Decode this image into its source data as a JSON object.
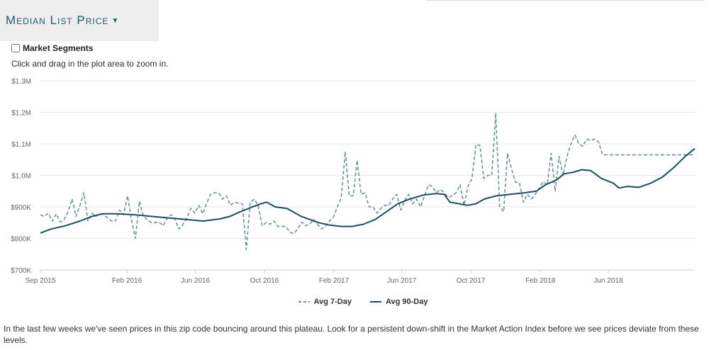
{
  "header": {
    "title": "Median List Price"
  },
  "segments": {
    "label": "Market Segments",
    "checked": false
  },
  "hint": "Click and drag in the plot area to zoom in.",
  "footer": "In the last few weeks we've seen prices in this zip code bouncing around this plateau. Look for a persistent down-shift in the Market Action Index before we see prices deviate from these levels.",
  "colors": {
    "series7": "#6a9497",
    "series90": "#1d4e5c",
    "grid": "#e6e6e6",
    "title": "#1e5a6e"
  },
  "chart_data": {
    "type": "line",
    "title": "",
    "xlabel": "",
    "ylabel": "",
    "ylim": [
      700000,
      1300000
    ],
    "yticks": [
      700000,
      800000,
      900000,
      1000000,
      1100000,
      1200000,
      1300000
    ],
    "ytick_labels": [
      "$700K",
      "$800K",
      "$900K",
      "$1.0M",
      "$1.1M",
      "$1.2M",
      "$1.3M"
    ],
    "xticks": [
      "2015-09-01",
      "2016-02-01",
      "2016-06-01",
      "2016-10-01",
      "2017-02-01",
      "2017-06-01",
      "2017-10-01",
      "2018-02-01",
      "2018-06-01"
    ],
    "xtick_labels": [
      "Sep 2015",
      "Feb 2016",
      "Jun 2016",
      "Oct 2016",
      "Feb 2017",
      "Jun 2017",
      "Oct 2017",
      "Feb 2018",
      "Jun 2018"
    ],
    "xrange": [
      "2015-09-01",
      "2018-11-01"
    ],
    "grid": "horizontal",
    "legend": "bottom-center",
    "series": [
      {
        "name": "Avg 7-Day",
        "style": "dashed",
        "points": [
          [
            "2015-09-01",
            875000
          ],
          [
            "2015-09-08",
            870000
          ],
          [
            "2015-09-15",
            880000
          ],
          [
            "2015-09-22",
            855000
          ],
          [
            "2015-09-29",
            878000
          ],
          [
            "2015-10-06",
            852000
          ],
          [
            "2015-10-13",
            860000
          ],
          [
            "2015-10-20",
            885000
          ],
          [
            "2015-10-27",
            925000
          ],
          [
            "2015-11-03",
            870000
          ],
          [
            "2015-11-10",
            905000
          ],
          [
            "2015-11-17",
            945000
          ],
          [
            "2015-11-24",
            855000
          ],
          [
            "2015-12-01",
            880000
          ],
          [
            "2015-12-08",
            870000
          ],
          [
            "2015-12-15",
            880000
          ],
          [
            "2015-12-22",
            875000
          ],
          [
            "2015-12-29",
            865000
          ],
          [
            "2016-01-05",
            855000
          ],
          [
            "2016-01-12",
            855000
          ],
          [
            "2016-01-19",
            890000
          ],
          [
            "2016-01-26",
            875000
          ],
          [
            "2016-02-02",
            935000
          ],
          [
            "2016-02-09",
            860000
          ],
          [
            "2016-02-16",
            800000
          ],
          [
            "2016-02-23",
            918000
          ],
          [
            "2016-03-01",
            870000
          ],
          [
            "2016-03-08",
            860000
          ],
          [
            "2016-03-15",
            850000
          ],
          [
            "2016-03-22",
            850000
          ],
          [
            "2016-03-29",
            852000
          ],
          [
            "2016-04-05",
            840000
          ],
          [
            "2016-04-12",
            865000
          ],
          [
            "2016-04-19",
            875000
          ],
          [
            "2016-04-26",
            860000
          ],
          [
            "2016-05-03",
            830000
          ],
          [
            "2016-05-10",
            845000
          ],
          [
            "2016-05-17",
            865000
          ],
          [
            "2016-05-24",
            895000
          ],
          [
            "2016-05-31",
            880000
          ],
          [
            "2016-06-07",
            905000
          ],
          [
            "2016-06-14",
            878000
          ],
          [
            "2016-06-21",
            912000
          ],
          [
            "2016-06-28",
            940000
          ],
          [
            "2016-07-05",
            945000
          ],
          [
            "2016-07-12",
            945000
          ],
          [
            "2016-07-19",
            925000
          ],
          [
            "2016-07-26",
            935000
          ],
          [
            "2016-08-02",
            905000
          ],
          [
            "2016-08-09",
            915000
          ],
          [
            "2016-08-16",
            912000
          ],
          [
            "2016-08-23",
            910000
          ],
          [
            "2016-08-30",
            765000
          ],
          [
            "2016-09-06",
            915000
          ],
          [
            "2016-09-13",
            925000
          ],
          [
            "2016-09-20",
            905000
          ],
          [
            "2016-09-27",
            840000
          ],
          [
            "2016-10-04",
            850000
          ],
          [
            "2016-10-11",
            845000
          ],
          [
            "2016-10-18",
            855000
          ],
          [
            "2016-10-25",
            838000
          ],
          [
            "2016-11-01",
            838000
          ],
          [
            "2016-11-08",
            838000
          ],
          [
            "2016-11-15",
            820000
          ],
          [
            "2016-11-22",
            815000
          ],
          [
            "2016-11-29",
            830000
          ],
          [
            "2016-12-06",
            852000
          ],
          [
            "2016-12-13",
            840000
          ],
          [
            "2016-12-20",
            845000
          ],
          [
            "2016-12-27",
            860000
          ],
          [
            "2017-01-03",
            845000
          ],
          [
            "2017-01-10",
            830000
          ],
          [
            "2017-01-17",
            840000
          ],
          [
            "2017-01-24",
            855000
          ],
          [
            "2017-01-31",
            868000
          ],
          [
            "2017-02-07",
            900000
          ],
          [
            "2017-02-14",
            930000
          ],
          [
            "2017-02-21",
            1075000
          ],
          [
            "2017-02-28",
            935000
          ],
          [
            "2017-03-07",
            935000
          ],
          [
            "2017-03-14",
            1048000
          ],
          [
            "2017-03-21",
            940000
          ],
          [
            "2017-03-28",
            945000
          ],
          [
            "2017-04-04",
            900000
          ],
          [
            "2017-04-11",
            900000
          ],
          [
            "2017-04-18",
            880000
          ],
          [
            "2017-04-25",
            895000
          ],
          [
            "2017-05-02",
            905000
          ],
          [
            "2017-05-09",
            905000
          ],
          [
            "2017-05-16",
            925000
          ],
          [
            "2017-05-23",
            940000
          ],
          [
            "2017-05-30",
            890000
          ],
          [
            "2017-06-06",
            920000
          ],
          [
            "2017-06-13",
            940000
          ],
          [
            "2017-06-20",
            910000
          ],
          [
            "2017-06-27",
            925000
          ],
          [
            "2017-07-04",
            900000
          ],
          [
            "2017-07-11",
            935000
          ],
          [
            "2017-07-18",
            970000
          ],
          [
            "2017-07-25",
            965000
          ],
          [
            "2017-08-01",
            945000
          ],
          [
            "2017-08-08",
            955000
          ],
          [
            "2017-08-15",
            945000
          ],
          [
            "2017-08-22",
            930000
          ],
          [
            "2017-08-29",
            935000
          ],
          [
            "2017-09-05",
            945000
          ],
          [
            "2017-09-12",
            970000
          ],
          [
            "2017-09-19",
            905000
          ],
          [
            "2017-09-26",
            965000
          ],
          [
            "2017-10-03",
            990000
          ],
          [
            "2017-10-10",
            1098000
          ],
          [
            "2017-10-17",
            1095000
          ],
          [
            "2017-10-24",
            990000
          ],
          [
            "2017-10-31",
            1000000
          ],
          [
            "2017-11-07",
            1000000
          ],
          [
            "2017-11-14",
            1198000
          ],
          [
            "2017-11-21",
            900000
          ],
          [
            "2017-11-28",
            885000
          ],
          [
            "2017-12-05",
            1070000
          ],
          [
            "2017-12-12",
            1020000
          ],
          [
            "2017-12-19",
            978000
          ],
          [
            "2017-12-26",
            975000
          ],
          [
            "2018-01-02",
            915000
          ],
          [
            "2018-01-09",
            940000
          ],
          [
            "2018-01-16",
            925000
          ],
          [
            "2018-01-23",
            940000
          ],
          [
            "2018-01-30",
            960000
          ],
          [
            "2018-02-06",
            980000
          ],
          [
            "2018-02-13",
            970000
          ],
          [
            "2018-02-20",
            1070000
          ],
          [
            "2018-02-27",
            950000
          ],
          [
            "2018-03-06",
            1060000
          ],
          [
            "2018-03-13",
            1000000
          ],
          [
            "2018-03-20",
            1060000
          ],
          [
            "2018-03-27",
            1100000
          ],
          [
            "2018-04-03",
            1128000
          ],
          [
            "2018-04-10",
            1100000
          ],
          [
            "2018-04-17",
            1092000
          ],
          [
            "2018-04-24",
            1115000
          ],
          [
            "2018-05-01",
            1110000
          ],
          [
            "2018-05-08",
            1115000
          ],
          [
            "2018-05-15",
            1105000
          ],
          [
            "2018-05-22",
            1065000
          ],
          [
            "2018-11-01",
            1065000
          ]
        ]
      },
      {
        "name": "Avg 90-Day",
        "style": "solid",
        "points": [
          [
            "2015-09-01",
            817000
          ],
          [
            "2015-09-20",
            830000
          ],
          [
            "2015-10-15",
            840000
          ],
          [
            "2015-11-10",
            855000
          ],
          [
            "2015-12-01",
            870000
          ],
          [
            "2015-12-20",
            878000
          ],
          [
            "2016-01-15",
            878000
          ],
          [
            "2016-02-15",
            875000
          ],
          [
            "2016-03-15",
            870000
          ],
          [
            "2016-04-15",
            865000
          ],
          [
            "2016-05-15",
            860000
          ],
          [
            "2016-06-15",
            855000
          ],
          [
            "2016-07-15",
            862000
          ],
          [
            "2016-08-01",
            870000
          ],
          [
            "2016-08-20",
            885000
          ],
          [
            "2016-09-10",
            900000
          ],
          [
            "2016-09-25",
            910000
          ],
          [
            "2016-10-05",
            915000
          ],
          [
            "2016-10-20",
            900000
          ],
          [
            "2016-11-10",
            895000
          ],
          [
            "2016-12-05",
            870000
          ],
          [
            "2017-01-05",
            850000
          ],
          [
            "2017-01-25",
            842000
          ],
          [
            "2017-02-15",
            838000
          ],
          [
            "2017-03-05",
            838000
          ],
          [
            "2017-03-25",
            845000
          ],
          [
            "2017-04-15",
            860000
          ],
          [
            "2017-05-05",
            885000
          ],
          [
            "2017-05-25",
            910000
          ],
          [
            "2017-06-15",
            925000
          ],
          [
            "2017-07-10",
            938000
          ],
          [
            "2017-08-01",
            942000
          ],
          [
            "2017-08-15",
            940000
          ],
          [
            "2017-08-25",
            915000
          ],
          [
            "2017-09-10",
            910000
          ],
          [
            "2017-09-25",
            905000
          ],
          [
            "2017-10-10",
            910000
          ],
          [
            "2017-10-25",
            925000
          ],
          [
            "2017-11-15",
            935000
          ],
          [
            "2017-12-10",
            940000
          ],
          [
            "2018-01-05",
            945000
          ],
          [
            "2018-01-25",
            950000
          ],
          [
            "2018-02-10",
            970000
          ],
          [
            "2018-03-01",
            985000
          ],
          [
            "2018-03-15",
            1005000
          ],
          [
            "2018-04-01",
            1010000
          ],
          [
            "2018-04-15",
            1018000
          ],
          [
            "2018-05-01",
            1015000
          ],
          [
            "2018-05-20",
            990000
          ],
          [
            "2018-06-10",
            975000
          ],
          [
            "2018-06-20",
            960000
          ],
          [
            "2018-07-05",
            965000
          ],
          [
            "2018-07-25",
            962000
          ],
          [
            "2018-08-15",
            975000
          ],
          [
            "2018-09-05",
            995000
          ],
          [
            "2018-09-25",
            1025000
          ],
          [
            "2018-10-15",
            1060000
          ],
          [
            "2018-11-01",
            1085000
          ]
        ]
      }
    ]
  }
}
